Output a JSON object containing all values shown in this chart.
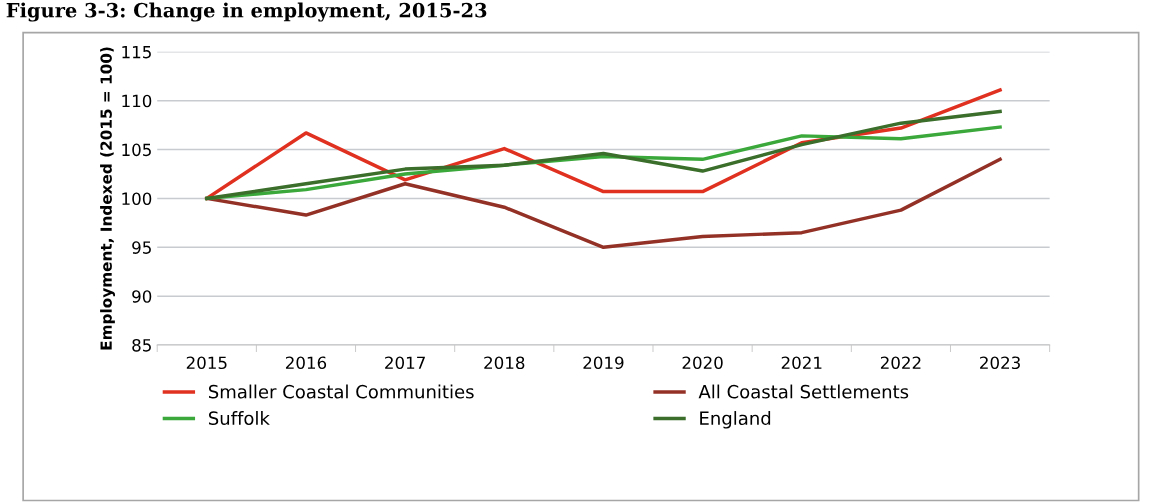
{
  "chart_data": {
    "type": "line",
    "title": "Figure 3-3: Change in employment, 2015-23",
    "ylabel": "Employment, Indexed (2015 = 100)",
    "categories": [
      "2015",
      "2016",
      "2017",
      "2018",
      "2019",
      "2020",
      "2021",
      "2022",
      "2023"
    ],
    "series": [
      {
        "name": "Smaller Coastal Communities",
        "color": "#e03020",
        "values": [
          100,
          106.7,
          101.9,
          105.1,
          100.7,
          100.7,
          105.7,
          107.2,
          111.1
        ]
      },
      {
        "name": "All Coastal Settlements",
        "color": "#943126",
        "values": [
          100,
          98.3,
          101.5,
          99.1,
          95.0,
          96.1,
          96.5,
          98.8,
          104.0
        ]
      },
      {
        "name": "Suffolk",
        "color": "#3aa83a",
        "values": [
          100,
          100.9,
          102.5,
          103.4,
          104.3,
          104.0,
          106.4,
          106.1,
          107.3
        ]
      },
      {
        "name": "England",
        "color": "#3a6e2a",
        "values": [
          100,
          101.5,
          103.0,
          103.4,
          104.6,
          102.8,
          105.5,
          107.7,
          108.9
        ]
      }
    ],
    "ylim": [
      85,
      115
    ],
    "yticks": [
      85,
      90,
      95,
      100,
      105,
      110,
      115
    ],
    "grid": "y",
    "legend": "bottom",
    "marker": "none",
    "line_style": "solid"
  }
}
